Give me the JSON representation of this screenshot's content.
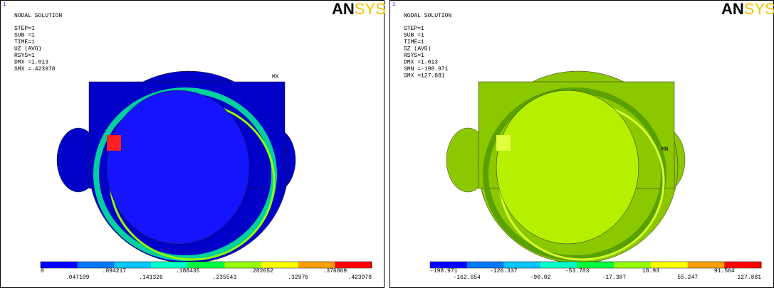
{
  "panels": [
    {
      "number": "1",
      "title": "NODAL SOLUTION",
      "info": [
        "STEP=1",
        "SUB =1",
        "TIME=1",
        "UZ       (AVG)",
        "RSYS=1",
        "DMX =1.013",
        "SMX =.423978"
      ],
      "logo": {
        "bold": "AN",
        "light": "SYS"
      },
      "marker": "MX",
      "legend_top": [
        "0",
        ".094217",
        ".188435",
        ".282652",
        ".376869"
      ],
      "legend_bottom": [
        ".047109",
        ".141326",
        ".235543",
        ".32976",
        ".423978"
      ]
    },
    {
      "number": "1",
      "title": "NODAL SOLUTION",
      "info": [
        "STEP=1",
        "SUB =1",
        "TIME=1",
        "SZ       (AVG)",
        "RSYS=1",
        "DMX =1.013",
        "SMN =-198.971",
        "SMX =127.881"
      ],
      "logo": {
        "bold": "AN",
        "light": "SYS"
      },
      "marker": "MN",
      "legend_top": [
        "-198.971",
        "-126.337",
        "-53.703",
        "18.93",
        "91.564"
      ],
      "legend_bottom": [
        "-162.654",
        "-90.02",
        "-17.387",
        "55.247",
        "127.881"
      ]
    }
  ]
}
